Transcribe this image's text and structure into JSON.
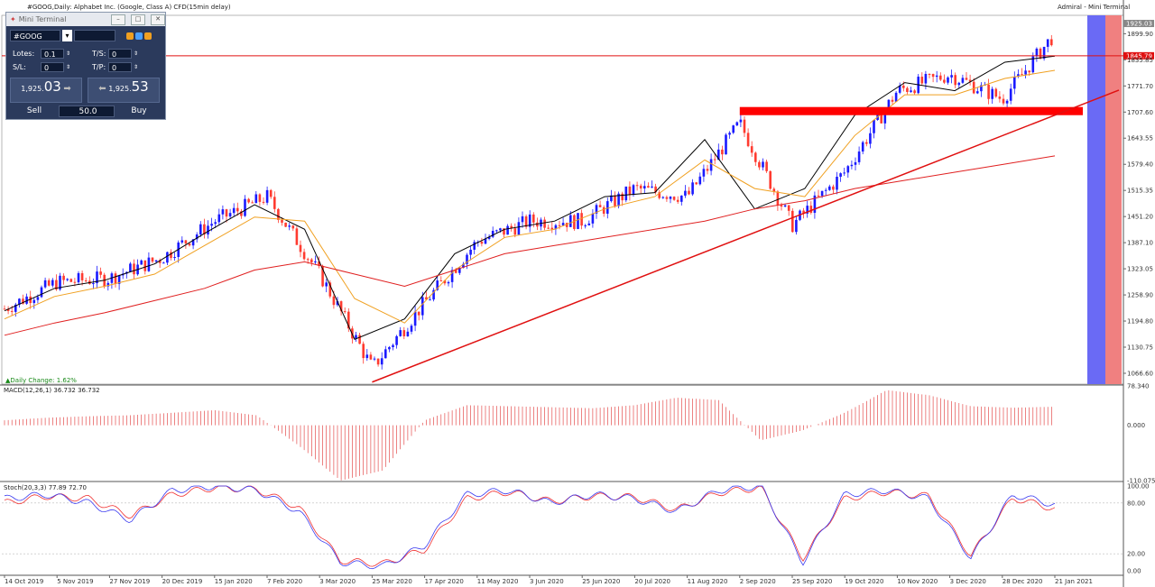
{
  "header": {
    "symbol_line": "#GOOG,Daily: Alphabet Inc. (Google, Class A) CFD(15min delay)",
    "broker_line": "Admiral - Mini Terminal"
  },
  "mini_terminal": {
    "title": "Mini Terminal",
    "symbol": "#GOOG",
    "lots_label": "Lotes:",
    "lots_value": "0.1",
    "ts_label": "T/S:",
    "ts_value": "0",
    "sl_label": "S/L:",
    "sl_value": "0",
    "tp_label": "T/P:",
    "tp_value": "0",
    "sell_price_small": "1,925.",
    "sell_price_big": "03",
    "buy_price_small": "1,925.",
    "buy_price_big": "53",
    "sell_label": "Sell",
    "buy_label": "Buy",
    "volume": "50.0"
  },
  "daily_change": "Daily Change: 1.62%",
  "colors": {
    "bull": "#1a1aff",
    "bear": "#ff3b30",
    "ma_fast": "#000000",
    "ma_mid": "#f0a020",
    "ma_slow": "#e02020",
    "trendline": "#e01010",
    "zone": "#ff0000",
    "macd": "#e03030",
    "stoch_main": "#3a3af0",
    "stoch_signal": "#f03030"
  },
  "chart_data": [
    {
      "type": "candlestick",
      "title": "#GOOG,Daily: Alphabet Inc. (Google, Class A) CFD(15min delay)",
      "price_labels": [
        "1899.90",
        "1835.85",
        "1771.70",
        "1707.60",
        "1643.55",
        "1579.40",
        "1515.35",
        "1451.20",
        "1387.10",
        "1323.05",
        "1258.90",
        "1194.80",
        "1130.75",
        "1066.60"
      ],
      "current_price": "1925.03",
      "horizontal_line_price": "1845.79",
      "x_tick_labels": [
        "14 Oct 2019",
        "5 Nov 2019",
        "27 Nov 2019",
        "20 Dec 2019",
        "15 Jan 2020",
        "7 Feb 2020",
        "3 Mar 2020",
        "25 Mar 2020",
        "17 Apr 2020",
        "11 May 2020",
        "3 Jun 2020",
        "25 Jun 2020",
        "20 Jul 2020",
        "11 Aug 2020",
        "2 Sep 2020",
        "25 Sep 2020",
        "19 Oct 2020",
        "10 Nov 2020",
        "3 Dec 2020",
        "28 Dec 2020",
        "21 Jan 2021"
      ],
      "close_path": [
        {
          "date": "14 Oct 2019",
          "close": 1225
        },
        {
          "date": "5 Nov 2019",
          "close": 1290
        },
        {
          "date": "27 Nov 2019",
          "close": 1300
        },
        {
          "date": "20 Dec 2019",
          "close": 1350
        },
        {
          "date": "15 Jan 2020",
          "close": 1440
        },
        {
          "date": "7 Feb 2020",
          "close": 1500
        },
        {
          "date": "3 Mar 2020",
          "close": 1310
        },
        {
          "date": "25 Mar 2020",
          "close": 1080
        },
        {
          "date": "17 Apr 2020",
          "close": 1240
        },
        {
          "date": "11 May 2020",
          "close": 1390
        },
        {
          "date": "3 Jun 2020",
          "close": 1440
        },
        {
          "date": "25 Jun 2020",
          "close": 1440
        },
        {
          "date": "20 Jul 2020",
          "close": 1520
        },
        {
          "date": "11 Aug 2020",
          "close": 1500
        },
        {
          "date": "2 Sep 2020",
          "close": 1680
        },
        {
          "date": "25 Sep 2020",
          "close": 1430
        },
        {
          "date": "19 Oct 2020",
          "close": 1560
        },
        {
          "date": "10 Nov 2020",
          "close": 1760
        },
        {
          "date": "3 Dec 2020",
          "close": 1800
        },
        {
          "date": "28 Dec 2020",
          "close": 1740
        },
        {
          "date": "21 Jan 2021",
          "close": 1900
        },
        {
          "date": "27 Jan 2021",
          "close": 1925
        }
      ],
      "moving_averages": [
        {
          "name": "fast",
          "points": [
            1220,
            1275,
            1295,
            1335,
            1410,
            1480,
            1420,
            1150,
            1200,
            1360,
            1420,
            1440,
            1500,
            1510,
            1640,
            1470,
            1520,
            1700,
            1780,
            1760,
            1830,
            1845
          ]
        },
        {
          "name": "mid",
          "points": [
            1200,
            1255,
            1280,
            1310,
            1380,
            1450,
            1440,
            1250,
            1190,
            1320,
            1400,
            1420,
            1470,
            1500,
            1590,
            1520,
            1500,
            1650,
            1750,
            1750,
            1790,
            1810
          ]
        },
        {
          "name": "slow",
          "points": [
            1160,
            1190,
            1215,
            1245,
            1275,
            1320,
            1340,
            1310,
            1280,
            1320,
            1360,
            1380,
            1400,
            1420,
            1440,
            1470,
            1490,
            1520,
            1540,
            1560,
            1580,
            1600
          ]
        }
      ],
      "resistance_zone": {
        "from": "2 Sep 2020",
        "to_right_edge": true,
        "low": 1700,
        "high": 1720
      },
      "trendline": {
        "from": {
          "date": "25 Mar 2020",
          "price": 1045
        },
        "to": {
          "date": "27 Jan 2021",
          "price": 1700
        }
      },
      "daily_change_percent": 1.62
    },
    {
      "type": "bar",
      "title": "MACD(12,26,1) 36.732 36.732",
      "axis_labels": [
        "78.340",
        "0.000",
        "-110.075"
      ],
      "values": [
        10,
        15,
        18,
        20,
        25,
        30,
        20,
        -40,
        -110,
        -90,
        10,
        40,
        38,
        36,
        34,
        40,
        55,
        50,
        -30,
        -10,
        25,
        70,
        60,
        38,
        35,
        37
      ]
    },
    {
      "type": "line",
      "title": "Stoch(20,3,3) 77.89 72.70",
      "axis_labels": [
        "100.00",
        "80.00",
        "20.00",
        "0.00"
      ],
      "levels": [
        80,
        20
      ],
      "main": [
        85,
        90,
        80,
        60,
        95,
        100,
        95,
        70,
        10,
        5,
        30,
        90,
        95,
        80,
        90,
        85,
        70,
        95,
        100,
        10,
        90,
        95,
        85,
        15,
        90,
        78
      ],
      "signal": [
        80,
        88,
        85,
        65,
        90,
        98,
        96,
        75,
        12,
        8,
        25,
        85,
        93,
        82,
        88,
        87,
        72,
        92,
        98,
        15,
        85,
        93,
        88,
        18,
        86,
        73
      ]
    }
  ]
}
